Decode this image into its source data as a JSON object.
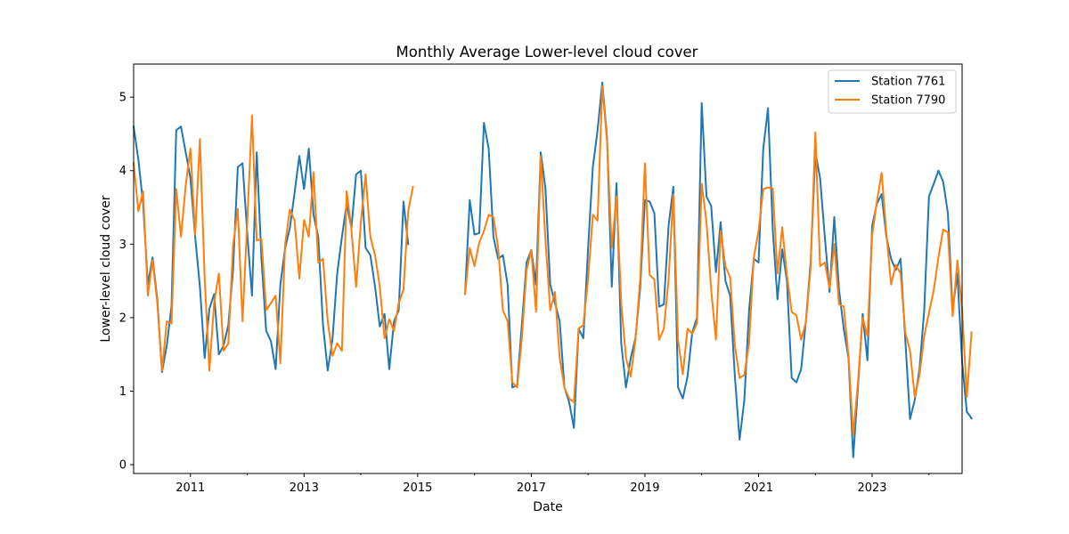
{
  "chart_data": {
    "type": "line",
    "title": "Monthly Average Lower-level cloud cover",
    "xlabel": "Date",
    "ylabel": "Lower-level cloud cover",
    "xlim": [
      "2010-01",
      "2024-08"
    ],
    "ylim": [
      -0.12,
      5.45
    ],
    "y_ticks": [
      0,
      1,
      2,
      3,
      4,
      5
    ],
    "x_tick_labels": [
      "2011",
      "2013",
      "2015",
      "2017",
      "2019",
      "2021",
      "2023"
    ],
    "grid": false,
    "legend_position": "top-right",
    "series": [
      {
        "name": "Station 7761",
        "color": "#1f77b4",
        "start": "2010-01",
        "values": [
          4.6,
          4.15,
          3.55,
          2.45,
          2.82,
          2.25,
          1.26,
          1.62,
          2.15,
          4.55,
          4.6,
          4.25,
          3.9,
          3.1,
          2.42,
          1.45,
          2.12,
          2.32,
          1.5,
          1.62,
          1.9,
          2.65,
          4.05,
          4.1,
          3.15,
          2.3,
          4.25,
          2.8,
          1.82,
          1.68,
          1.3,
          2.45,
          2.95,
          3.22,
          3.7,
          4.2,
          3.75,
          4.3,
          3.4,
          3.1,
          1.9,
          1.28,
          1.7,
          2.6,
          3.1,
          3.55,
          3.22,
          3.95,
          4.0,
          2.95,
          2.85,
          2.42,
          1.88,
          2.05,
          1.3,
          1.95,
          2.1,
          3.58,
          3.0,
          null,
          null,
          null,
          null,
          null,
          null,
          null,
          null,
          null,
          null,
          null,
          2.32,
          3.6,
          3.13,
          3.15,
          4.65,
          4.3,
          3.1,
          2.8,
          2.85,
          2.45,
          1.05,
          1.08,
          1.9,
          2.75,
          2.92,
          2.45,
          4.25,
          3.75,
          2.45,
          2.2,
          1.95,
          1.05,
          0.85,
          0.5,
          1.85,
          1.72,
          2.95,
          4.05,
          4.55,
          5.2,
          4.45,
          2.42,
          3.83,
          1.65,
          1.05,
          1.45,
          1.72,
          2.4,
          3.6,
          3.58,
          3.42,
          2.15,
          2.18,
          3.25,
          3.78,
          1.05,
          0.9,
          1.2,
          1.8,
          2.0,
          4.92,
          3.65,
          3.52,
          2.62,
          3.3,
          2.5,
          2.3,
          1.2,
          0.34,
          0.88,
          2.1,
          2.8,
          2.75,
          4.3,
          4.85,
          3.2,
          2.25,
          2.93,
          2.5,
          1.18,
          1.12,
          1.3,
          1.95,
          2.75,
          4.25,
          3.9,
          3.1,
          2.35,
          3.37,
          2.38,
          1.85,
          1.45,
          0.1,
          1.05,
          2.05,
          1.42,
          3.25,
          3.55,
          3.68,
          3.1,
          2.8,
          2.65,
          2.8,
          1.7,
          0.62,
          0.88,
          1.3,
          2.1,
          3.65,
          3.82,
          4.0,
          3.85,
          3.42,
          2.1,
          2.6,
          1.4,
          0.72,
          0.63
        ]
      },
      {
        "name": "Station 7790",
        "color": "#ff7f0e",
        "start": "2010-01",
        "values": [
          4.1,
          3.45,
          3.72,
          2.3,
          2.78,
          2.2,
          1.28,
          1.95,
          1.92,
          3.75,
          3.1,
          3.8,
          4.3,
          3.13,
          4.43,
          2.55,
          1.28,
          2.2,
          2.6,
          1.55,
          1.65,
          2.98,
          3.48,
          1.95,
          3.3,
          4.75,
          3.05,
          3.07,
          2.1,
          2.2,
          2.3,
          1.38,
          3.0,
          3.47,
          3.32,
          2.53,
          3.33,
          3.1,
          3.98,
          2.75,
          2.8,
          1.95,
          1.48,
          1.65,
          1.55,
          3.72,
          3.2,
          2.42,
          3.3,
          3.95,
          3.1,
          2.85,
          2.42,
          1.72,
          1.98,
          1.82,
          2.2,
          2.38,
          3.45,
          3.78,
          null,
          null,
          null,
          null,
          null,
          null,
          null,
          null,
          null,
          null,
          2.32,
          2.95,
          2.7,
          3.02,
          3.18,
          3.4,
          3.37,
          2.95,
          2.1,
          1.95,
          1.12,
          1.05,
          1.72,
          2.65,
          2.92,
          2.08,
          4.2,
          3.05,
          2.1,
          2.35,
          1.45,
          1.05,
          0.9,
          0.85,
          1.85,
          1.9,
          2.53,
          3.4,
          3.32,
          5.15,
          4.4,
          2.95,
          3.65,
          2.2,
          1.45,
          1.2,
          1.7,
          2.52,
          4.1,
          2.58,
          2.52,
          1.7,
          1.85,
          2.52,
          3.68,
          1.7,
          1.23,
          1.85,
          1.78,
          1.92,
          3.82,
          3.3,
          2.38,
          1.7,
          3.18,
          2.7,
          2.55,
          1.62,
          1.18,
          1.22,
          1.65,
          2.82,
          3.18,
          3.75,
          3.77,
          3.76,
          2.6,
          3.23,
          2.58,
          2.08,
          2.03,
          1.7,
          1.93,
          2.68,
          4.52,
          2.7,
          2.75,
          2.4,
          3.0,
          2.18,
          2.15,
          1.48,
          0.4,
          1.12,
          2.0,
          1.75,
          3.12,
          3.58,
          3.97,
          3.15,
          2.45,
          2.72,
          2.6,
          1.8,
          1.55,
          0.92,
          1.22,
          1.75,
          2.07,
          2.37,
          2.82,
          3.2,
          3.16,
          2.02,
          2.78,
          2.12,
          0.92,
          1.8
        ]
      }
    ]
  }
}
